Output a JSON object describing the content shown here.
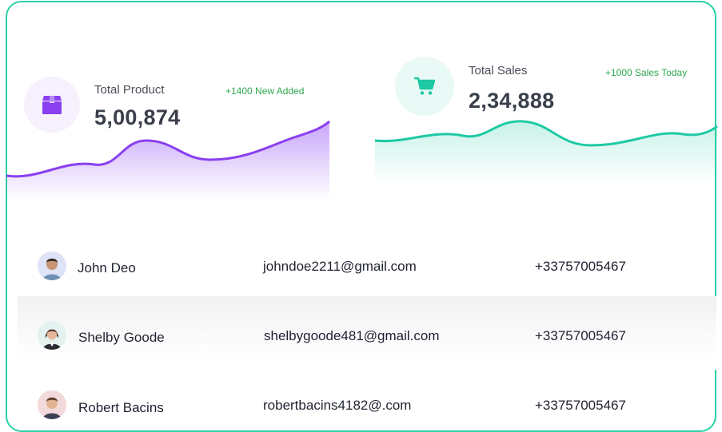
{
  "stats": [
    {
      "title": "Total Product",
      "value": "5,00,874",
      "badge": "+1400 New Added",
      "icon": "box-icon",
      "accent": "#8a3ff0",
      "icon_bg": "#f6f1fd"
    },
    {
      "title": "Total Sales",
      "value": "2,34,888",
      "badge": "+1000 Sales Today",
      "icon": "cart-icon",
      "accent": "#1ec9a3",
      "icon_bg": "#e9f9f5"
    }
  ],
  "users": [
    {
      "name": "John Deo",
      "email": "johndoe2211@gmail.com",
      "phone": "+33757005467",
      "avatar_bg": "#dfe3f7"
    },
    {
      "name": "Shelby Goode",
      "email": "shelbygoode481@gmail.com",
      "phone": "+33757005467",
      "avatar_bg": "#e4f1ef"
    },
    {
      "name": "Robert Bacins",
      "email": "robertbacins4182@.com",
      "phone": "+33757005467",
      "avatar_bg": "#f3d9d9"
    }
  ],
  "colors": {
    "frame_border": "#2ad1a5",
    "badge_green": "#2fa84f"
  }
}
